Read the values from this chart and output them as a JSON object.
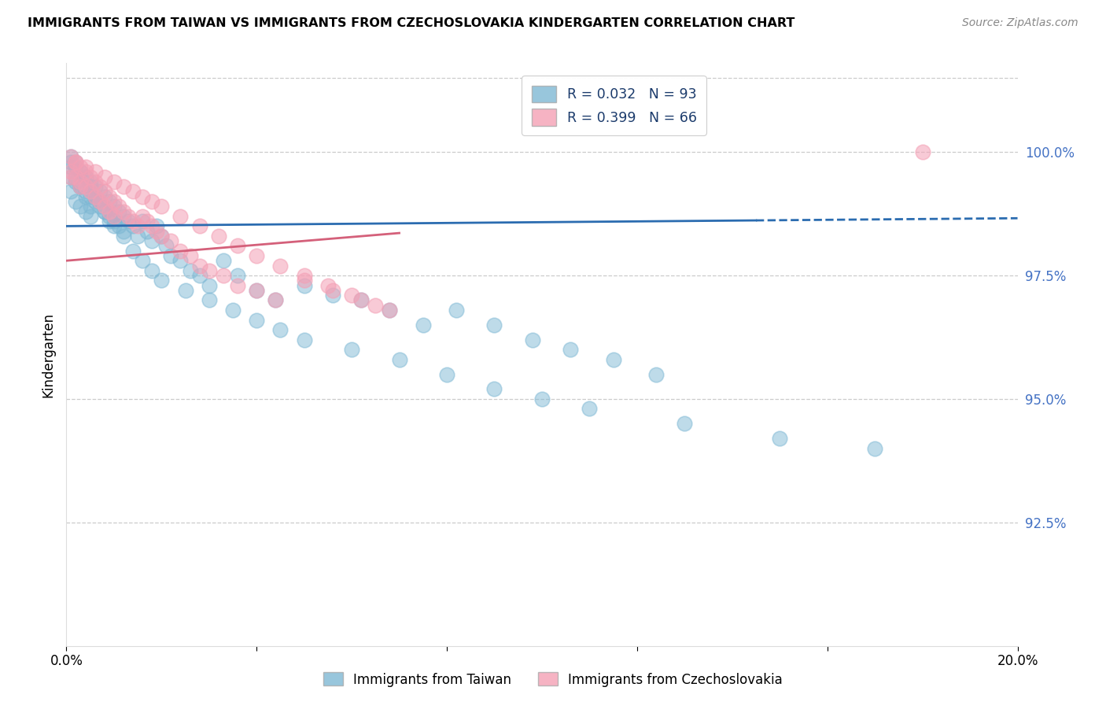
{
  "title": "IMMIGRANTS FROM TAIWAN VS IMMIGRANTS FROM CZECHOSLOVAKIA KINDERGARTEN CORRELATION CHART",
  "source": "Source: ZipAtlas.com",
  "ylabel": "Kindergarten",
  "xmin": 0.0,
  "xmax": 0.2,
  "ymin": 90.0,
  "ymax": 101.8,
  "yticks": [
    92.5,
    95.0,
    97.5,
    100.0
  ],
  "ytick_labels": [
    "92.5%",
    "95.0%",
    "97.5%",
    "100.0%"
  ],
  "xticks": [
    0.0,
    0.04,
    0.08,
    0.12,
    0.16,
    0.2
  ],
  "xtick_labels": [
    "0.0%",
    "",
    "",
    "",
    "",
    "20.0%"
  ],
  "taiwan_color": "#7eb8d4",
  "czech_color": "#f4a0b5",
  "taiwan_line_color": "#2b6cb0",
  "czech_line_color": "#d4607a",
  "taiwan_R": 0.032,
  "taiwan_N": 93,
  "czech_R": 0.399,
  "czech_N": 66,
  "legend_taiwan_label": "R = 0.032   N = 93",
  "legend_czech_label": "R = 0.399   N = 66",
  "taiwan_scatter_x": [
    0.001,
    0.001,
    0.001,
    0.002,
    0.002,
    0.002,
    0.003,
    0.003,
    0.003,
    0.004,
    0.004,
    0.004,
    0.005,
    0.005,
    0.005,
    0.006,
    0.006,
    0.007,
    0.007,
    0.008,
    0.008,
    0.009,
    0.009,
    0.01,
    0.01,
    0.011,
    0.011,
    0.012,
    0.012,
    0.013,
    0.014,
    0.015,
    0.016,
    0.017,
    0.018,
    0.019,
    0.02,
    0.021,
    0.022,
    0.024,
    0.026,
    0.028,
    0.03,
    0.033,
    0.036,
    0.04,
    0.044,
    0.05,
    0.056,
    0.062,
    0.068,
    0.075,
    0.082,
    0.09,
    0.098,
    0.106,
    0.115,
    0.124,
    0.001,
    0.002,
    0.003,
    0.004,
    0.005,
    0.006,
    0.007,
    0.008,
    0.009,
    0.01,
    0.012,
    0.014,
    0.016,
    0.018,
    0.02,
    0.025,
    0.03,
    0.035,
    0.04,
    0.045,
    0.05,
    0.06,
    0.07,
    0.08,
    0.09,
    0.1,
    0.11,
    0.13,
    0.15,
    0.17,
    0.001,
    0.002,
    0.003,
    0.004,
    0.005
  ],
  "taiwan_scatter_y": [
    99.8,
    99.5,
    99.2,
    99.7,
    99.4,
    99.0,
    99.6,
    99.3,
    98.9,
    99.5,
    99.2,
    98.8,
    99.4,
    99.1,
    98.7,
    99.3,
    99.0,
    99.2,
    98.9,
    99.1,
    98.8,
    99.0,
    98.7,
    98.9,
    98.6,
    98.8,
    98.5,
    98.7,
    98.4,
    98.6,
    98.5,
    98.3,
    98.6,
    98.4,
    98.2,
    98.5,
    98.3,
    98.1,
    97.9,
    97.8,
    97.6,
    97.5,
    97.3,
    97.8,
    97.5,
    97.2,
    97.0,
    97.3,
    97.1,
    97.0,
    96.8,
    96.5,
    96.8,
    96.5,
    96.2,
    96.0,
    95.8,
    95.5,
    99.9,
    99.8,
    99.6,
    99.5,
    99.3,
    99.1,
    99.0,
    98.8,
    98.6,
    98.5,
    98.3,
    98.0,
    97.8,
    97.6,
    97.4,
    97.2,
    97.0,
    96.8,
    96.6,
    96.4,
    96.2,
    96.0,
    95.8,
    95.5,
    95.2,
    95.0,
    94.8,
    94.5,
    94.2,
    94.0,
    99.7,
    99.5,
    99.3,
    99.1,
    98.9
  ],
  "czech_scatter_x": [
    0.001,
    0.001,
    0.002,
    0.002,
    0.003,
    0.003,
    0.004,
    0.004,
    0.005,
    0.005,
    0.006,
    0.006,
    0.007,
    0.007,
    0.008,
    0.008,
    0.009,
    0.009,
    0.01,
    0.01,
    0.011,
    0.012,
    0.013,
    0.014,
    0.015,
    0.016,
    0.017,
    0.018,
    0.019,
    0.02,
    0.022,
    0.024,
    0.026,
    0.028,
    0.03,
    0.033,
    0.036,
    0.04,
    0.044,
    0.05,
    0.056,
    0.062,
    0.068,
    0.18,
    0.002,
    0.004,
    0.006,
    0.008,
    0.01,
    0.012,
    0.014,
    0.016,
    0.018,
    0.02,
    0.024,
    0.028,
    0.032,
    0.036,
    0.04,
    0.045,
    0.05,
    0.055,
    0.06,
    0.065,
    0.001,
    0.003
  ],
  "czech_scatter_y": [
    99.9,
    99.6,
    99.8,
    99.5,
    99.7,
    99.4,
    99.6,
    99.3,
    99.5,
    99.2,
    99.4,
    99.1,
    99.3,
    99.0,
    99.2,
    98.9,
    99.1,
    98.8,
    99.0,
    98.7,
    98.9,
    98.8,
    98.7,
    98.6,
    98.5,
    98.7,
    98.6,
    98.5,
    98.4,
    98.3,
    98.2,
    98.0,
    97.9,
    97.7,
    97.6,
    97.5,
    97.3,
    97.2,
    97.0,
    97.4,
    97.2,
    97.0,
    96.8,
    100.0,
    99.8,
    99.7,
    99.6,
    99.5,
    99.4,
    99.3,
    99.2,
    99.1,
    99.0,
    98.9,
    98.7,
    98.5,
    98.3,
    98.1,
    97.9,
    97.7,
    97.5,
    97.3,
    97.1,
    96.9,
    99.5,
    99.3
  ]
}
